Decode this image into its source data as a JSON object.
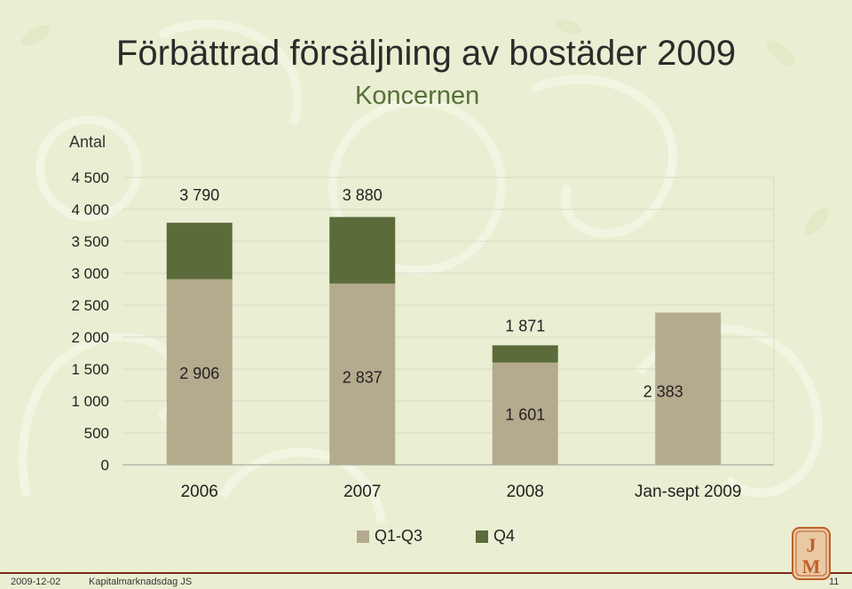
{
  "title": "Förbättrad försäljning av bostäder 2009",
  "subtitle": "Koncernen",
  "footer": {
    "date": "2009-12-02",
    "event": "Kapitalmarknadsdag JS",
    "page": "11"
  },
  "colors": {
    "q1q3": "#b4aa8e",
    "q4": "#5b6b3a",
    "background": "#eaeed2"
  },
  "legend": [
    {
      "label": "Q1-Q3",
      "color": "#b4aa8e"
    },
    {
      "label": "Q4",
      "color": "#5b6b3a"
    }
  ],
  "chart_data": {
    "type": "bar",
    "stacked": true,
    "categories": [
      "2006",
      "2007",
      "2008",
      "Jan-sept 2009"
    ],
    "series": [
      {
        "name": "Q1-Q3",
        "values": [
          2906,
          2837,
          1601,
          2383
        ]
      },
      {
        "name": "Q4",
        "values": [
          884,
          1043,
          270,
          0
        ]
      }
    ],
    "totals": [
      3790,
      3880,
      1871,
      null
    ],
    "segment_labels": [
      "2 906",
      "2 837",
      "1 601",
      "2 383"
    ],
    "total_labels": [
      "3 790",
      "3 880",
      "1 871",
      ""
    ],
    "ylabel": "Antal",
    "ylim": [
      0,
      4500
    ],
    "yticks": [
      0,
      500,
      1000,
      1500,
      2000,
      2500,
      3000,
      3500,
      4000,
      4500
    ],
    "ytick_labels": [
      "0",
      "500",
      "1 000",
      "1 500",
      "2 000",
      "2 500",
      "3 000",
      "3 500",
      "4 000",
      "4 500"
    ],
    "grid": true,
    "legend_position": "bottom"
  }
}
